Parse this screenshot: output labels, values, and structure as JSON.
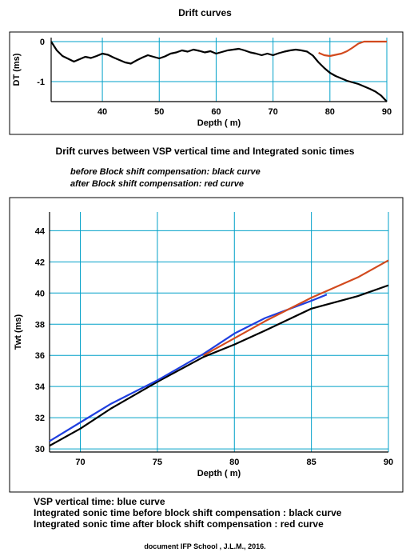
{
  "drift_title": "Drift curves",
  "drift_caption": "Drift curves between VSP vertical time and Integrated sonic times",
  "notes": {
    "before": "before Block shift compensation: black curve",
    "after": "after Block shift compensation: red curve"
  },
  "legend": {
    "blue": "VSP vertical time: blue curve",
    "black": "Integrated sonic time before block shift compensation : black curve",
    "red": "Integrated sonic time after block shift compensation : red curve"
  },
  "credit": "document IFP School , J.L.M., 2016.",
  "colors": {
    "grid": "#00a0c8",
    "blue": "#1f3fe0",
    "black": "#000000",
    "red": "#d24a1e",
    "frame": "#000000"
  },
  "chart_data": [
    {
      "type": "line",
      "title": "Drift curves",
      "xlabel": "Depth ( m)",
      "ylabel": "DT (ms)",
      "xlim": [
        31,
        90
      ],
      "ylim": [
        -1.5,
        0.1
      ],
      "xticks": [
        40,
        50,
        60,
        70,
        80,
        90
      ],
      "yticks": [
        0,
        -1
      ],
      "grid": true,
      "series": [
        {
          "color": "black",
          "x": [
            31,
            32,
            33,
            34,
            35,
            36,
            37,
            38,
            39,
            40,
            41,
            42,
            43,
            44,
            45,
            46,
            47,
            48,
            49,
            50,
            51,
            52,
            53,
            54,
            55,
            56,
            57,
            58,
            59,
            60,
            61,
            62,
            63,
            64,
            65,
            66,
            67,
            68,
            69,
            70,
            71,
            72,
            73,
            74,
            75,
            76,
            77,
            78,
            79,
            80,
            81,
            82,
            83,
            84,
            85,
            86,
            87,
            88,
            89,
            90
          ],
          "values": [
            0,
            -0.22,
            -0.36,
            -0.43,
            -0.5,
            -0.44,
            -0.38,
            -0.41,
            -0.36,
            -0.3,
            -0.33,
            -0.4,
            -0.46,
            -0.52,
            -0.55,
            -0.47,
            -0.4,
            -0.34,
            -0.38,
            -0.42,
            -0.37,
            -0.3,
            -0.27,
            -0.22,
            -0.25,
            -0.2,
            -0.23,
            -0.27,
            -0.24,
            -0.3,
            -0.26,
            -0.22,
            -0.2,
            -0.18,
            -0.22,
            -0.27,
            -0.3,
            -0.34,
            -0.3,
            -0.34,
            -0.29,
            -0.25,
            -0.22,
            -0.2,
            -0.22,
            -0.25,
            -0.35,
            -0.52,
            -0.66,
            -0.78,
            -0.86,
            -0.92,
            -0.98,
            -1.02,
            -1.06,
            -1.12,
            -1.18,
            -1.25,
            -1.35,
            -1.5
          ]
        },
        {
          "color": "red",
          "x": [
            78,
            79,
            80,
            81,
            82,
            83,
            84,
            85,
            86,
            87,
            88,
            89,
            90
          ],
          "values": [
            -0.28,
            -0.34,
            -0.36,
            -0.33,
            -0.3,
            -0.24,
            -0.15,
            -0.05,
            0,
            0,
            0,
            0,
            0
          ]
        }
      ]
    },
    {
      "type": "line",
      "xlabel": "Depth ( m)",
      "ylabel": "Twt (ms)",
      "xlim": [
        68,
        90
      ],
      "ylim": [
        29.8,
        45.2
      ],
      "xticks": [
        70,
        75,
        80,
        85,
        90
      ],
      "yticks": [
        30,
        32,
        34,
        36,
        38,
        40,
        42,
        44
      ],
      "grid": true,
      "series": [
        {
          "color": "black",
          "x": [
            68,
            70,
            72,
            75,
            78,
            80,
            82,
            85,
            88,
            90
          ],
          "values": [
            30.2,
            31.3,
            32.6,
            34.3,
            35.9,
            36.7,
            37.6,
            39.0,
            39.8,
            40.5
          ]
        },
        {
          "color": "blue",
          "x": [
            68,
            70,
            72,
            75,
            78,
            80,
            82,
            85,
            86
          ],
          "values": [
            30.5,
            31.7,
            32.9,
            34.4,
            36.1,
            37.4,
            38.4,
            39.5,
            39.9
          ]
        },
        {
          "color": "red",
          "x": [
            78,
            80,
            82,
            85,
            88,
            90
          ],
          "values": [
            36.0,
            37.1,
            38.2,
            39.7,
            41.0,
            42.1
          ]
        }
      ]
    }
  ]
}
